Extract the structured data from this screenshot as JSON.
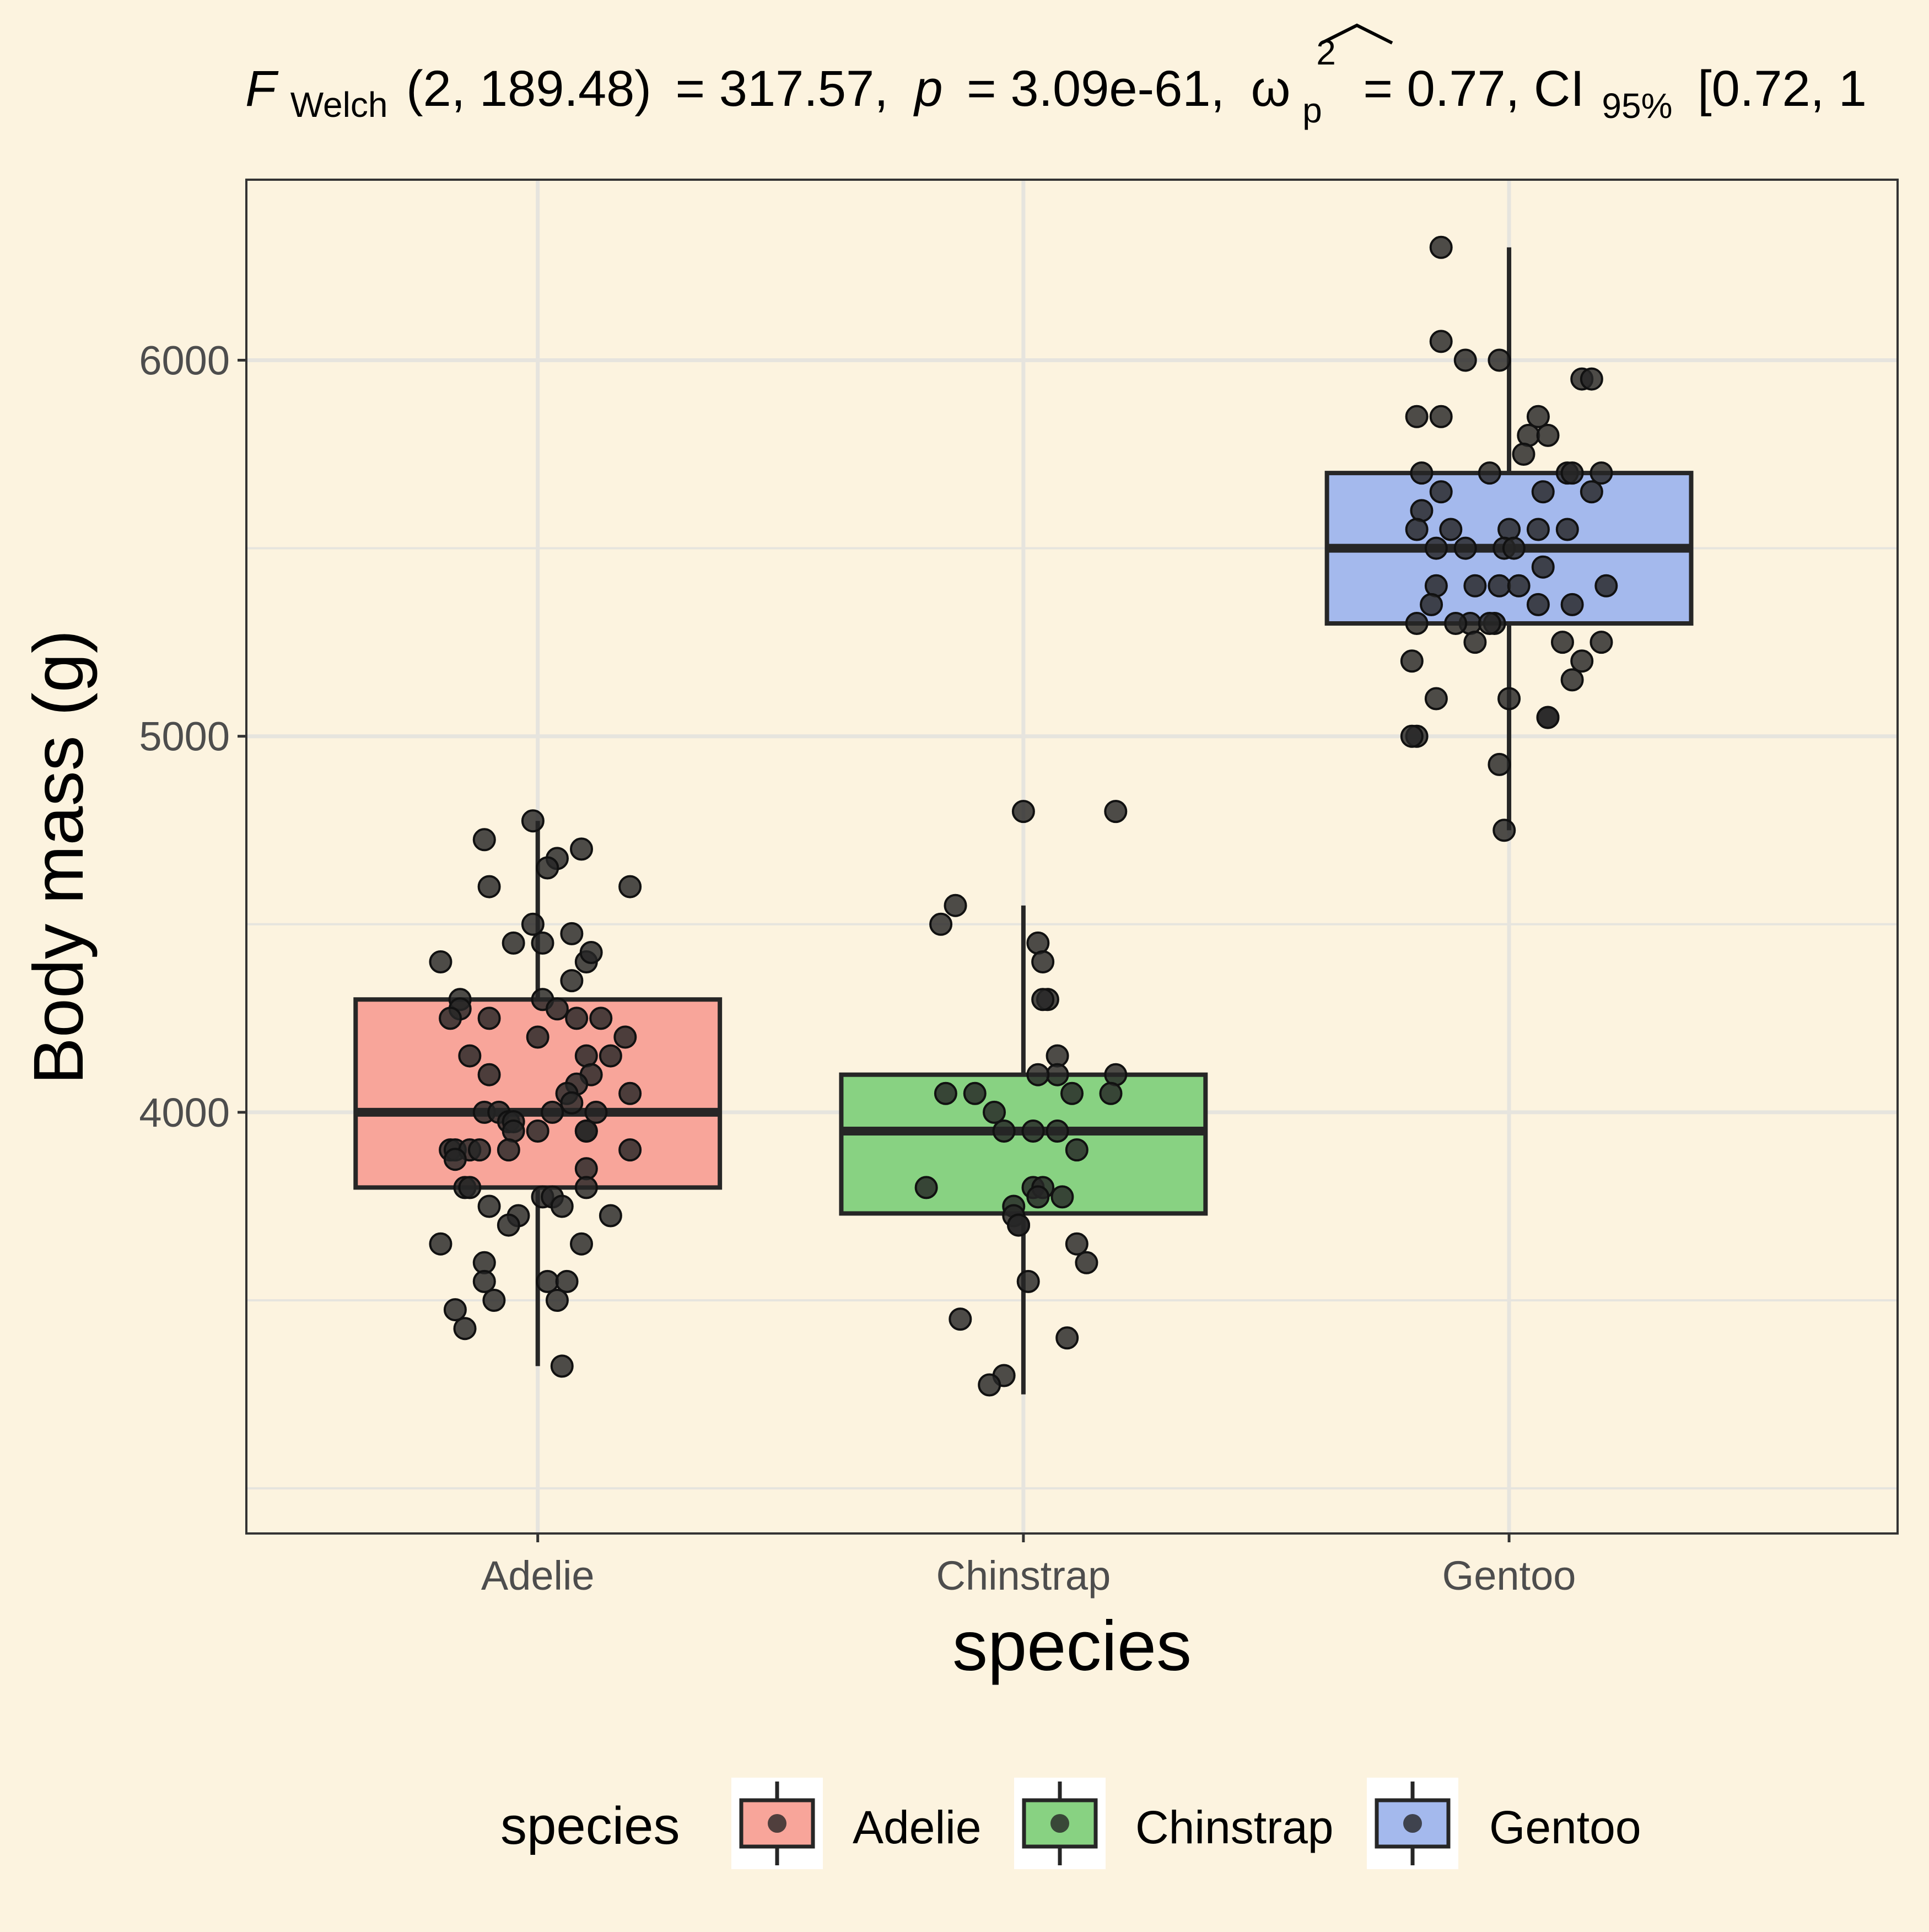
{
  "subtitle": {
    "stat_name": "F",
    "stat_sub": "Welch",
    "df_text": "(2, 189.48)",
    "stat_value": "= 317.57,",
    "p_symbol": "p",
    "p_value": "= 3.09e-61,",
    "effect_symbol": "ω",
    "effect_sup": "2",
    "effect_sub": "p",
    "effect_value": "= 0.77, CI",
    "ci_sub": "95%",
    "ci_text": "[0.72, 1"
  },
  "legend": {
    "title": "species",
    "items": [
      "Adelie",
      "Chinstrap",
      "Gentoo"
    ]
  },
  "colors": {
    "Adelie": "#f8a59a",
    "Chinstrap": "#88d282",
    "Gentoo": "#a4b9ed",
    "background": "#fcf3df",
    "point": "#262626"
  },
  "chart_data": {
    "type": "box",
    "title": "F Welch(2, 189.48) = 317.57, p = 3.09e-61, ω p 2 = 0.77, CI 95% [0.72, 1",
    "xlabel": "species",
    "ylabel": "Body mass (g)",
    "categories": [
      "Adelie",
      "Chinstrap",
      "Gentoo"
    ],
    "yticks": [
      4000,
      5000,
      6000
    ],
    "ytick_labels": [
      "4000",
      "5000",
      "6000"
    ],
    "ylim": [
      2880,
      6480
    ],
    "grid": true,
    "legend_position": "bottom",
    "boxes": [
      {
        "name": "Adelie",
        "q1": 3800,
        "median": 4000,
        "q3": 4300,
        "whisker_low": 3325,
        "whisker_high": 4775
      },
      {
        "name": "Chinstrap",
        "q1": 3731,
        "median": 3950,
        "q3": 4100,
        "whisker_low": 3250,
        "whisker_high": 4550
      },
      {
        "name": "Gentoo",
        "q1": 5300,
        "median": 5500,
        "q3": 5700,
        "whisker_low": 4750,
        "whisker_high": 6300
      }
    ],
    "points": [
      {
        "name": "Adelie",
        "values": [
          [
            -0.01,
            4775
          ],
          [
            -0.11,
            4725
          ],
          [
            0.09,
            4700
          ],
          [
            0.04,
            4675
          ],
          [
            0.02,
            4650
          ],
          [
            0.19,
            4600
          ],
          [
            -0.1,
            4600
          ],
          [
            -0.01,
            4500
          ],
          [
            0.07,
            4475
          ],
          [
            -0.05,
            4450
          ],
          [
            0.01,
            4450
          ],
          [
            0.1,
            4400
          ],
          [
            0.11,
            4425
          ],
          [
            -0.2,
            4400
          ],
          [
            0.07,
            4350
          ],
          [
            -0.16,
            4300
          ],
          [
            0.01,
            4300
          ],
          [
            0.04,
            4275
          ],
          [
            -0.16,
            4275
          ],
          [
            0.08,
            4250
          ],
          [
            0.13,
            4250
          ],
          [
            -0.18,
            4250
          ],
          [
            -0.1,
            4250
          ],
          [
            0.18,
            4200
          ],
          [
            0.0,
            4200
          ],
          [
            0.15,
            4150
          ],
          [
            0.1,
            4150
          ],
          [
            -0.14,
            4150
          ],
          [
            0.11,
            4100
          ],
          [
            -0.1,
            4100
          ],
          [
            0.08,
            4075
          ],
          [
            0.06,
            4050
          ],
          [
            0.19,
            4050
          ],
          [
            0.07,
            4025
          ],
          [
            -0.11,
            4000
          ],
          [
            0.03,
            4000
          ],
          [
            0.12,
            4000
          ],
          [
            -0.08,
            4000
          ],
          [
            -0.06,
            3975
          ],
          [
            -0.05,
            3975
          ],
          [
            -0.05,
            3950
          ],
          [
            0.0,
            3950
          ],
          [
            0.1,
            3950
          ],
          [
            0.1,
            3950
          ],
          [
            -0.18,
            3900
          ],
          [
            -0.17,
            3900
          ],
          [
            -0.14,
            3900
          ],
          [
            -0.12,
            3900
          ],
          [
            -0.06,
            3900
          ],
          [
            0.19,
            3900
          ],
          [
            -0.17,
            3875
          ],
          [
            0.1,
            3850
          ],
          [
            -0.15,
            3800
          ],
          [
            -0.14,
            3800
          ],
          [
            0.01,
            3775
          ],
          [
            0.1,
            3800
          ],
          [
            0.03,
            3775
          ],
          [
            0.05,
            3750
          ],
          [
            -0.1,
            3750
          ],
          [
            0.15,
            3725
          ],
          [
            -0.04,
            3725
          ],
          [
            -0.06,
            3700
          ],
          [
            -0.2,
            3650
          ],
          [
            0.09,
            3650
          ],
          [
            -0.11,
            3600
          ],
          [
            -0.11,
            3550
          ],
          [
            0.02,
            3550
          ],
          [
            0.06,
            3550
          ],
          [
            -0.09,
            3500
          ],
          [
            0.04,
            3500
          ],
          [
            -0.17,
            3475
          ],
          [
            -0.15,
            3425
          ],
          [
            0.05,
            3325
          ]
        ]
      },
      {
        "name": "Chinstrap",
        "values": [
          [
            0.0,
            4800
          ],
          [
            0.19,
            4800
          ],
          [
            -0.14,
            4550
          ],
          [
            -0.17,
            4500
          ],
          [
            0.03,
            4450
          ],
          [
            0.04,
            4400
          ],
          [
            0.05,
            4300
          ],
          [
            0.04,
            4300
          ],
          [
            0.07,
            4150
          ],
          [
            0.07,
            4100
          ],
          [
            0.03,
            4100
          ],
          [
            0.19,
            4100
          ],
          [
            0.18,
            4050
          ],
          [
            -0.16,
            4050
          ],
          [
            -0.1,
            4050
          ],
          [
            0.1,
            4050
          ],
          [
            -0.06,
            4000
          ],
          [
            0.02,
            3950
          ],
          [
            0.07,
            3950
          ],
          [
            -0.04,
            3950
          ],
          [
            0.11,
            3900
          ],
          [
            0.02,
            3800
          ],
          [
            0.04,
            3800
          ],
          [
            -0.2,
            3800
          ],
          [
            0.03,
            3775
          ],
          [
            0.08,
            3775
          ],
          [
            -0.02,
            3750
          ],
          [
            -0.02,
            3725
          ],
          [
            -0.01,
            3700
          ],
          [
            -0.01,
            3700
          ],
          [
            0.11,
            3650
          ],
          [
            0.13,
            3600
          ],
          [
            0.01,
            3550
          ],
          [
            -0.13,
            3450
          ],
          [
            0.09,
            3400
          ],
          [
            -0.04,
            3300
          ],
          [
            -0.07,
            3275
          ]
        ]
      },
      {
        "name": "Gentoo",
        "values": [
          [
            -0.14,
            6300
          ],
          [
            -0.14,
            6050
          ],
          [
            -0.09,
            6000
          ],
          [
            -0.02,
            6000
          ],
          [
            0.15,
            5950
          ],
          [
            0.17,
            5950
          ],
          [
            -0.19,
            5850
          ],
          [
            -0.14,
            5850
          ],
          [
            0.06,
            5850
          ],
          [
            0.04,
            5800
          ],
          [
            0.08,
            5800
          ],
          [
            0.03,
            5750
          ],
          [
            -0.04,
            5700
          ],
          [
            -0.18,
            5700
          ],
          [
            0.12,
            5700
          ],
          [
            0.19,
            5700
          ],
          [
            0.13,
            5700
          ],
          [
            -0.14,
            5650
          ],
          [
            0.17,
            5650
          ],
          [
            0.07,
            5650
          ],
          [
            -0.18,
            5600
          ],
          [
            -0.12,
            5550
          ],
          [
            0.06,
            5550
          ],
          [
            0.12,
            5550
          ],
          [
            -0.19,
            5550
          ],
          [
            0.0,
            5550
          ],
          [
            -0.15,
            5500
          ],
          [
            -0.09,
            5500
          ],
          [
            -0.01,
            5500
          ],
          [
            0.01,
            5500
          ],
          [
            0.07,
            5450
          ],
          [
            -0.15,
            5400
          ],
          [
            -0.07,
            5400
          ],
          [
            -0.02,
            5400
          ],
          [
            0.02,
            5400
          ],
          [
            0.2,
            5400
          ],
          [
            -0.16,
            5350
          ],
          [
            0.06,
            5350
          ],
          [
            0.13,
            5350
          ],
          [
            -0.08,
            5300
          ],
          [
            -0.11,
            5300
          ],
          [
            -0.19,
            5300
          ],
          [
            -0.03,
            5300
          ],
          [
            -0.04,
            5300
          ],
          [
            0.19,
            5250
          ],
          [
            -0.07,
            5250
          ],
          [
            0.11,
            5250
          ],
          [
            0.15,
            5200
          ],
          [
            -0.2,
            5200
          ],
          [
            0.13,
            5150
          ],
          [
            0.0,
            5100
          ],
          [
            -0.15,
            5100
          ],
          [
            0.08,
            5050
          ],
          [
            0.08,
            5050
          ],
          [
            -0.19,
            5000
          ],
          [
            -0.2,
            5000
          ],
          [
            -0.02,
            4925
          ],
          [
            -0.01,
            4750
          ]
        ]
      }
    ]
  }
}
